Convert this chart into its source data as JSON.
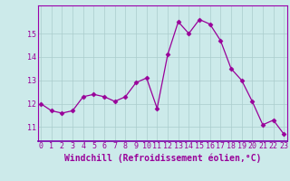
{
  "x": [
    0,
    1,
    2,
    3,
    4,
    5,
    6,
    7,
    8,
    9,
    10,
    11,
    12,
    13,
    14,
    15,
    16,
    17,
    18,
    19,
    20,
    21,
    22,
    23
  ],
  "y": [
    12.0,
    11.7,
    11.6,
    11.7,
    12.3,
    12.4,
    12.3,
    12.1,
    12.3,
    12.9,
    13.1,
    11.8,
    14.1,
    15.5,
    15.0,
    15.6,
    15.4,
    14.7,
    13.5,
    13.0,
    12.1,
    11.1,
    11.3,
    10.7
  ],
  "line_color": "#990099",
  "marker": "D",
  "marker_size": 2.5,
  "bg_color": "#cceaea",
  "grid_color": "#aacccc",
  "xlabel": "Windchill (Refroidissement éolien,°C)",
  "xlabel_fontsize": 7,
  "yticks": [
    11,
    12,
    13,
    14,
    15
  ],
  "xticks": [
    0,
    1,
    2,
    3,
    4,
    5,
    6,
    7,
    8,
    9,
    10,
    11,
    12,
    13,
    14,
    15,
    16,
    17,
    18,
    19,
    20,
    21,
    22,
    23
  ],
  "ylim": [
    10.4,
    16.2
  ],
  "xlim": [
    -0.3,
    23.3
  ],
  "tick_fontsize": 6,
  "spine_color": "#9900aa"
}
